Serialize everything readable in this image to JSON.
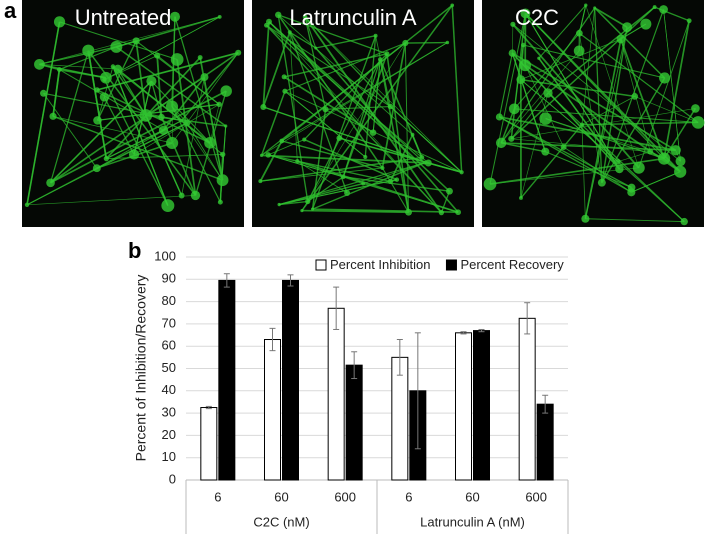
{
  "panel_a": {
    "label": "a",
    "images": [
      "Untreated",
      "Latrunculin A",
      "C2C"
    ]
  },
  "chart_data": {
    "type": "bar",
    "panel_label": "b",
    "ylabel": "Percent of Inhibition/Recovery",
    "categories": [
      "6",
      "60",
      "600",
      "6",
      "60",
      "600"
    ],
    "group_labels": [
      "C2C (nM)",
      "Latrunculin A (nM)"
    ],
    "series": [
      {
        "name": "Percent Inhibition",
        "color": "#ffffff",
        "edgecolor": "#000000",
        "values": [
          32.5,
          63,
          77,
          55,
          66,
          72.5
        ],
        "errors": [
          0.5,
          5,
          9.5,
          8,
          0.5,
          7
        ]
      },
      {
        "name": "Percent Recovery",
        "color": "#000000",
        "edgecolor": "#000000",
        "values": [
          89.5,
          89.5,
          51.5,
          40,
          67,
          34
        ],
        "errors": [
          3,
          2.5,
          6,
          26,
          0.5,
          4
        ]
      }
    ],
    "ylim": [
      0,
      100
    ],
    "yticks": [
      0,
      10,
      20,
      30,
      40,
      50,
      60,
      70,
      80,
      90,
      100
    ],
    "grid": true,
    "legend": "top"
  }
}
